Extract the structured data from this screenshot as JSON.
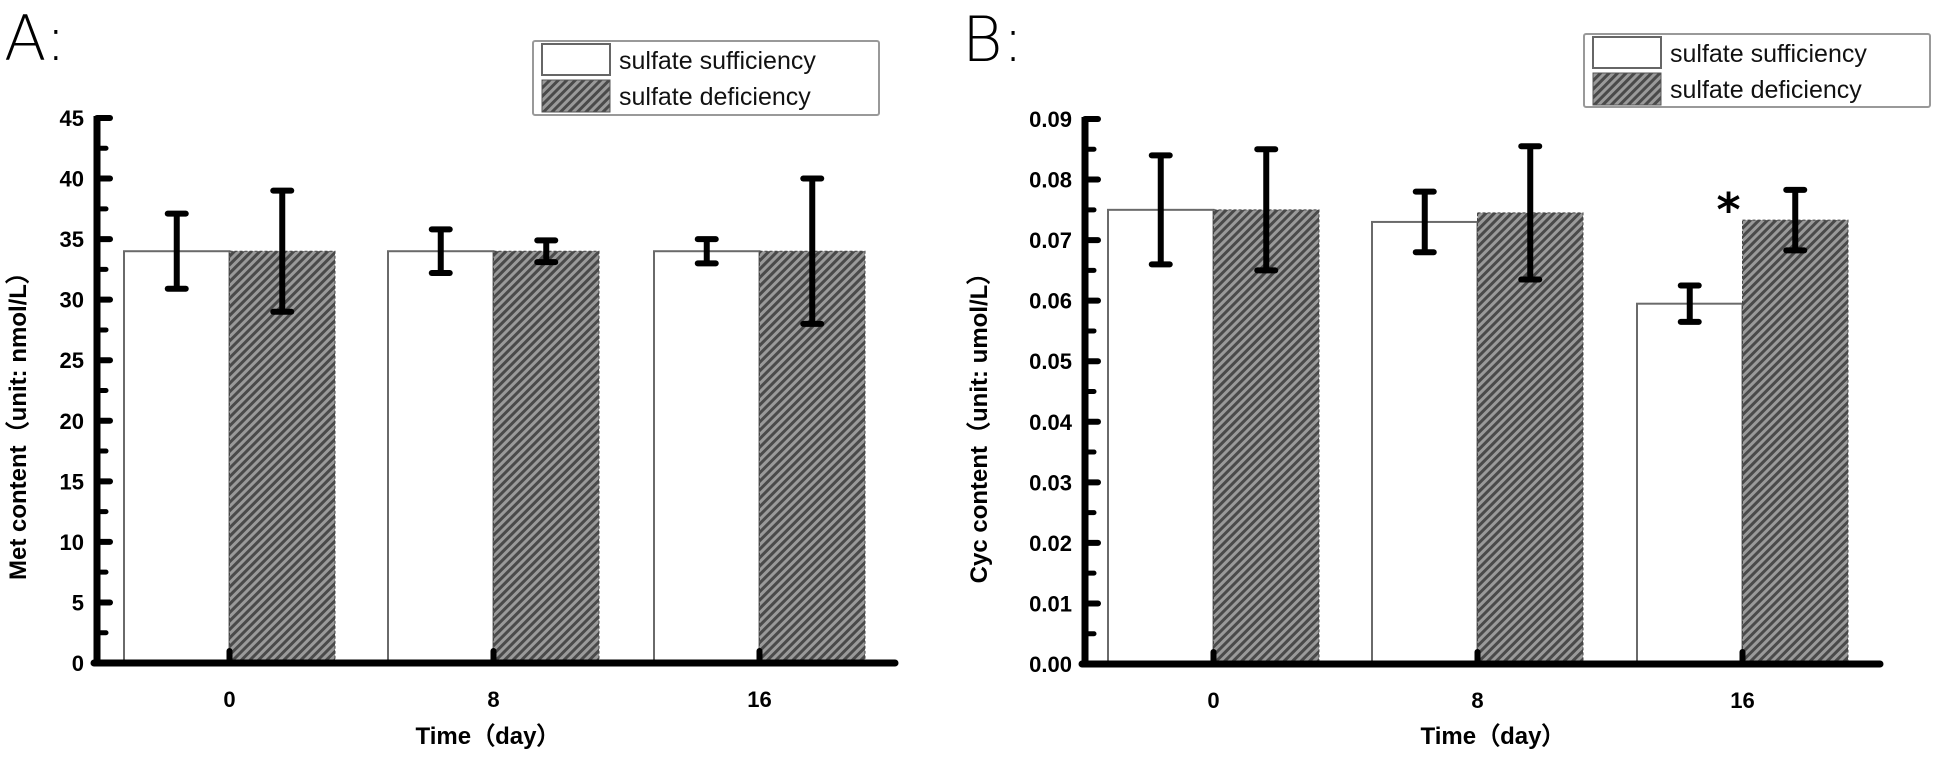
{
  "chart_data": [
    {
      "type": "bar",
      "panel_label": "A:",
      "title": "",
      "xlabel": "Time（day）",
      "ylabel": "Met content（unit: nmol/L）",
      "categories": [
        "0",
        "8",
        "16"
      ],
      "ylim": [
        0,
        45
      ],
      "yticks": [
        0,
        5,
        10,
        15,
        20,
        25,
        30,
        35,
        40,
        45
      ],
      "ytick_labels": [
        "0",
        "5",
        "10",
        "15",
        "20",
        "25",
        "30",
        "35",
        "40",
        "45"
      ],
      "grid": false,
      "legend_position": "top-right",
      "series": [
        {
          "name": "sulfate sufficiency",
          "fill": "white",
          "values": [
            34,
            34,
            34
          ],
          "errors": [
            3.1,
            1.8,
            1.0
          ]
        },
        {
          "name": "sulfate deficiency",
          "fill": "hatched",
          "values": [
            34,
            34,
            34
          ],
          "errors": [
            5.0,
            0.9,
            6.0
          ]
        }
      ],
      "annotations": []
    },
    {
      "type": "bar",
      "panel_label": "B:",
      "title": "",
      "xlabel": "Time（day）",
      "ylabel": "Cyc content（unit: umol/L）",
      "categories": [
        "0",
        "8",
        "16"
      ],
      "ylim": [
        0,
        0.09
      ],
      "yticks": [
        0,
        0.01,
        0.02,
        0.03,
        0.04,
        0.05,
        0.06,
        0.07,
        0.08,
        0.09
      ],
      "ytick_labels": [
        "0.00",
        "0.01",
        "0.02",
        "0.03",
        "0.04",
        "0.05",
        "0.06",
        "0.07",
        "0.08",
        "0.09"
      ],
      "grid": false,
      "legend_position": "top-right",
      "series": [
        {
          "name": "sulfate sufficiency",
          "fill": "white",
          "values": [
            0.075,
            0.073,
            0.0595
          ],
          "errors": [
            0.009,
            0.005,
            0.003
          ]
        },
        {
          "name": "sulfate deficiency",
          "fill": "hatched",
          "values": [
            0.075,
            0.0745,
            0.0733
          ],
          "errors": [
            0.01,
            0.011,
            0.005
          ]
        }
      ],
      "annotations": [
        {
          "text": "*",
          "category": "16",
          "series": "sulfate deficiency",
          "meaning": "significant difference"
        }
      ]
    }
  ],
  "colors": {
    "axis": "#000000",
    "bar_outline": "#666666",
    "hatch_dark": "#4a4a4a",
    "hatch_light": "#9a9a9a",
    "legend_border": "#999999"
  }
}
